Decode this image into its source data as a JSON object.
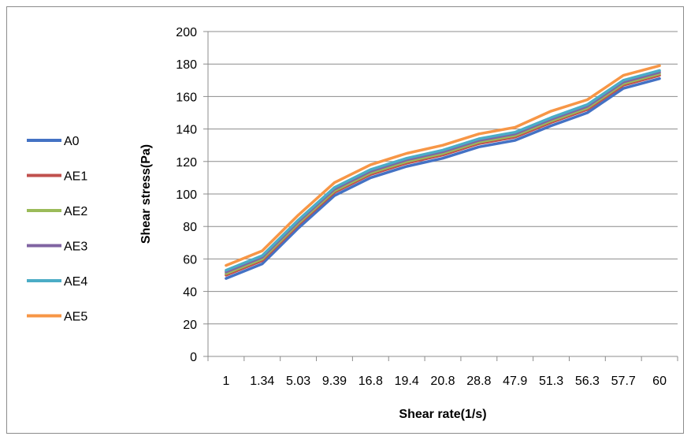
{
  "chart_data": {
    "type": "line",
    "title": "",
    "xlabel": "Shear rate(1/s)",
    "ylabel": "Shear stress(Pa)",
    "categories": [
      "1",
      "1.34",
      "5.03",
      "9.39",
      "16.8",
      "19.4",
      "20.8",
      "28.8",
      "47.9",
      "51.3",
      "56.3",
      "57.7",
      "60"
    ],
    "ylim": [
      0,
      200
    ],
    "yticks": [
      "0",
      "20",
      "40",
      "60",
      "80",
      "100",
      "120",
      "140",
      "160",
      "180",
      "200"
    ],
    "grid": "horizontal",
    "legend_position": "left",
    "series": [
      {
        "name": "A0",
        "color": "#4472C4",
        "values": [
          48,
          57,
          79,
          99,
          110,
          117,
          122,
          129,
          133,
          142,
          150,
          165,
          171
        ]
      },
      {
        "name": "AE1",
        "color": "#C0504D",
        "values": [
          50,
          59,
          81,
          101,
          112,
          119,
          124,
          131,
          135,
          144,
          152,
          167,
          173
        ]
      },
      {
        "name": "AE2",
        "color": "#9BBB59",
        "values": [
          51,
          60,
          82,
          102,
          113,
          120,
          125,
          132,
          136,
          145,
          153,
          168,
          174
        ]
      },
      {
        "name": "AE3",
        "color": "#8064A2",
        "values": [
          52,
          61,
          83,
          103,
          114,
          121,
          126,
          133,
          137,
          146,
          154,
          169,
          175
        ]
      },
      {
        "name": "AE4",
        "color": "#4BACC6",
        "values": [
          53,
          62,
          84,
          104,
          115,
          122,
          127,
          134,
          138,
          147,
          155,
          170,
          176
        ]
      },
      {
        "name": "AE5",
        "color": "#F79646",
        "values": [
          56,
          65,
          87,
          107,
          118,
          125,
          130,
          137,
          141,
          151,
          158,
          173,
          179
        ]
      }
    ]
  }
}
